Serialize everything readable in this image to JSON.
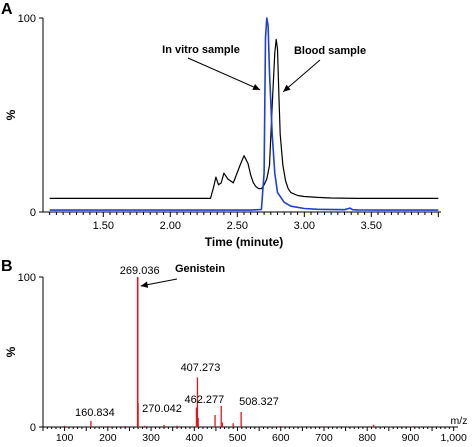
{
  "figure": {
    "background": "#ffffff"
  },
  "chart_data": [
    {
      "panel": "A",
      "type": "line",
      "xlabel": "Time (minute)",
      "ylabel": "%",
      "xlim": [
        1.05,
        4.02
      ],
      "ylim": [
        0,
        100
      ],
      "x_ticks": [
        "1.50",
        "2.00",
        "2.50",
        "3.00",
        "3.50"
      ],
      "y_ticks": [
        "0",
        "100"
      ],
      "series": [
        {
          "name": "In vitro sample",
          "color": "#1f3fd6",
          "x": [
            1.1,
            2.6,
            2.68,
            2.7,
            2.71,
            2.72,
            2.73,
            2.74,
            2.76,
            2.78,
            2.8,
            2.85,
            2.9,
            3.0,
            3.1,
            3.3,
            3.34,
            3.36,
            3.4,
            3.6,
            3.8,
            4.0
          ],
          "y": [
            1,
            1,
            1.3,
            20,
            90,
            100,
            96,
            72,
            40,
            20,
            10,
            5,
            3,
            1.8,
            1.4,
            1.2,
            2,
            1.2,
            1.1,
            1,
            1,
            1
          ]
        },
        {
          "name": "Blood sample",
          "color": "#000000",
          "x": [
            1.1,
            2.3,
            2.32,
            2.34,
            2.36,
            2.38,
            2.4,
            2.43,
            2.47,
            2.52,
            2.55,
            2.58,
            2.6,
            2.62,
            2.64,
            2.66,
            2.68,
            2.7,
            2.72,
            2.74,
            2.76,
            2.78,
            2.79,
            2.8,
            2.81,
            2.82,
            2.84,
            2.86,
            2.88,
            2.9,
            2.95,
            3.0,
            3.1,
            3.2,
            3.4,
            4.0
          ],
          "y": [
            7,
            7,
            12,
            18,
            14,
            15,
            20,
            17,
            15,
            24,
            29,
            25,
            19,
            15,
            13,
            12,
            12,
            14,
            17,
            24,
            55,
            82,
            89,
            84,
            60,
            40,
            24,
            16,
            12,
            10,
            8.5,
            8,
            7.5,
            7.2,
            7,
            7
          ]
        }
      ],
      "annotations": [
        {
          "text": "In vitro sample",
          "x": 2.7,
          "y": 63
        },
        {
          "text": "Blood sample",
          "x": 2.82,
          "y": 62
        }
      ],
      "grid": false
    },
    {
      "panel": "B",
      "type": "bar",
      "xlabel": "m/z",
      "ylabel": "%",
      "xlim": [
        50,
        1010
      ],
      "ylim": [
        0,
        100
      ],
      "x_ticks": [
        "100",
        "200",
        "300",
        "400",
        "500",
        "600",
        "700",
        "800",
        "900",
        "1,000"
      ],
      "y_ticks": [
        "0",
        "100"
      ],
      "color": "#e0151f",
      "peaks": [
        {
          "mz": 100,
          "value": 0.8
        },
        {
          "mz": 160.834,
          "value": 4,
          "label": "160.834"
        },
        {
          "mz": 200,
          "value": 0.6
        },
        {
          "mz": 240,
          "value": 0.7
        },
        {
          "mz": 269.036,
          "value": 100,
          "label": "269.036"
        },
        {
          "mz": 270.042,
          "value": 16,
          "label": "270.042"
        },
        {
          "mz": 285,
          "value": 0.8
        },
        {
          "mz": 330,
          "value": 1.4
        },
        {
          "mz": 360,
          "value": 0.9
        },
        {
          "mz": 405,
          "value": 13
        },
        {
          "mz": 407.273,
          "value": 33,
          "label": "407.273"
        },
        {
          "mz": 409,
          "value": 6
        },
        {
          "mz": 448,
          "value": 8
        },
        {
          "mz": 462.277,
          "value": 14,
          "label": "462.277"
        },
        {
          "mz": 465,
          "value": 3
        },
        {
          "mz": 490,
          "value": 2.5
        },
        {
          "mz": 508.327,
          "value": 10,
          "label": "508.327"
        },
        {
          "mz": 600,
          "value": 0.6
        },
        {
          "mz": 700,
          "value": 0.5
        },
        {
          "mz": 815,
          "value": 1.5
        },
        {
          "mz": 900,
          "value": 0.4
        }
      ],
      "annotations": [
        {
          "text": "Genistein",
          "x": 340,
          "y": 101
        }
      ],
      "grid": false
    }
  ]
}
